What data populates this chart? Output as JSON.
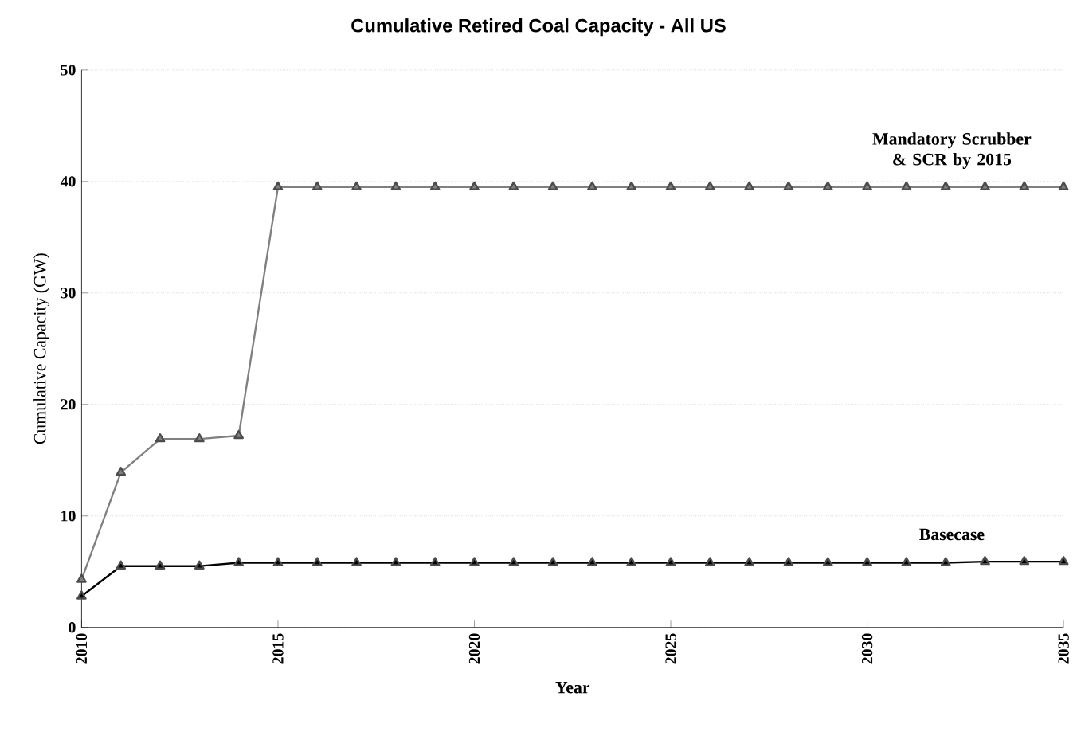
{
  "chart_data": {
    "type": "line",
    "title": "Cumulative Retired Coal Capacity - All US",
    "xlabel": "Year",
    "ylabel": "Cumulative Capacity (GW)",
    "x": [
      2010,
      2011,
      2012,
      2013,
      2014,
      2015,
      2016,
      2017,
      2018,
      2019,
      2020,
      2021,
      2022,
      2023,
      2024,
      2025,
      2026,
      2027,
      2028,
      2029,
      2030,
      2031,
      2032,
      2033,
      2034,
      2035
    ],
    "series": [
      {
        "name": "Mandatory Scrubber & SCR by 2015",
        "color": "#808080",
        "values": [
          4.3,
          13.9,
          16.9,
          16.9,
          17.2,
          39.5,
          39.5,
          39.5,
          39.5,
          39.5,
          39.5,
          39.5,
          39.5,
          39.5,
          39.5,
          39.5,
          39.5,
          39.5,
          39.5,
          39.5,
          39.5,
          39.5,
          39.5,
          39.5,
          39.5,
          39.5
        ]
      },
      {
        "name": "Basecase",
        "color": "#000000",
        "values": [
          2.8,
          5.5,
          5.5,
          5.5,
          5.8,
          5.8,
          5.8,
          5.8,
          5.8,
          5.8,
          5.8,
          5.8,
          5.8,
          5.8,
          5.8,
          5.8,
          5.8,
          5.8,
          5.8,
          5.8,
          5.8,
          5.8,
          5.8,
          5.9,
          5.9,
          5.9
        ]
      }
    ],
    "xlim": [
      2010,
      2035
    ],
    "xticks": [
      2010,
      2015,
      2020,
      2025,
      2030,
      2035
    ],
    "ylim": [
      0,
      50
    ],
    "yticks": [
      0,
      10,
      20,
      30,
      40,
      50
    ],
    "marker": "triangle",
    "line_style": "solid",
    "grid": "y"
  }
}
